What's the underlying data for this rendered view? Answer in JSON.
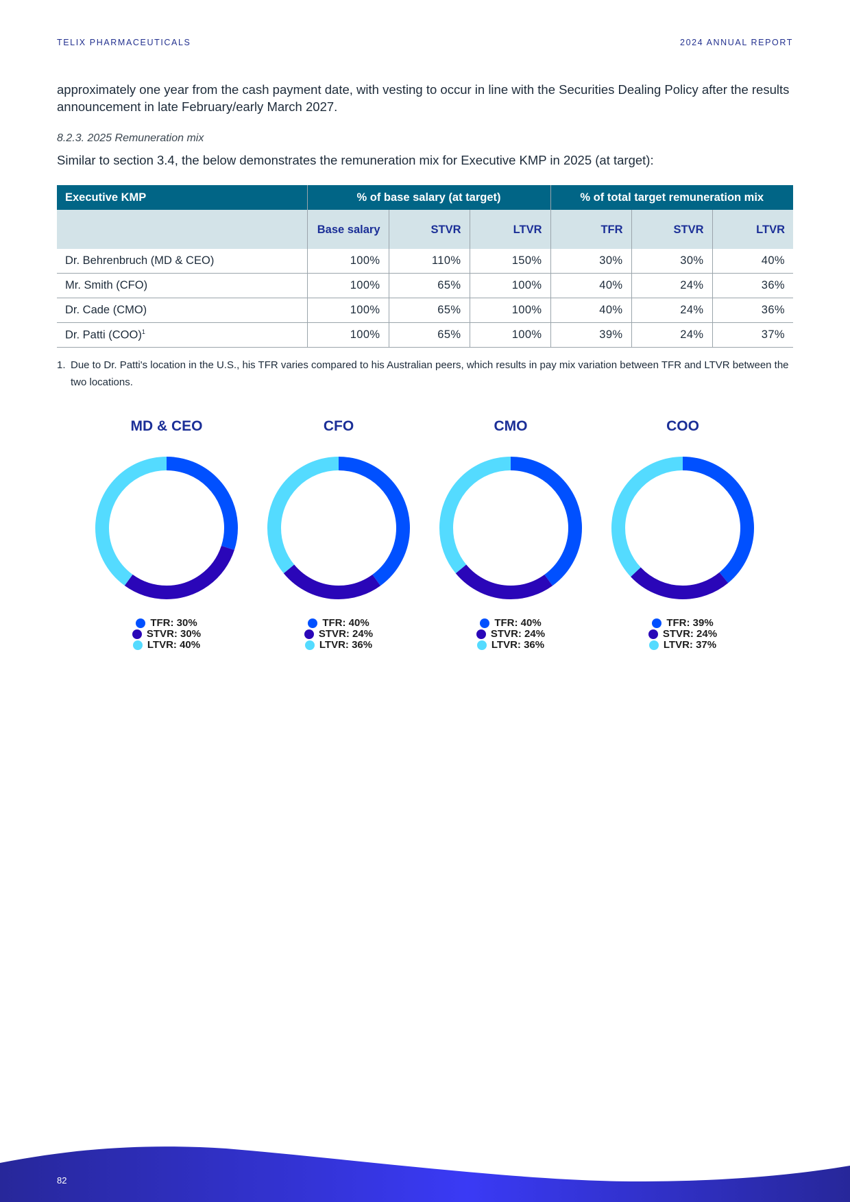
{
  "header": {
    "left": "TELIX PHARMACEUTICALS",
    "right": "2024 ANNUAL REPORT"
  },
  "intro_paragraph": "approximately one year from the cash payment date, with vesting to occur in line with the Securities Dealing Policy after the results announcement in late February/early March 2027.",
  "section_heading": "8.2.3. 2025 Remuneration mix",
  "section_intro": "Similar to section 3.4, the below demonstrates the remuneration mix for Executive KMP in 2025 (at target):",
  "table": {
    "group_headers": [
      "Executive KMP",
      "% of base salary (at target)",
      "% of total target remuneration mix"
    ],
    "sub_headers": [
      "",
      "Base salary",
      "STVR",
      "LTVR",
      "TFR",
      "STVR",
      "LTVR"
    ],
    "rows": [
      {
        "name": "Dr. Behrenbruch (MD & CEO)",
        "sup": "",
        "cells": [
          "100%",
          "110%",
          "150%",
          "30%",
          "30%",
          "40%"
        ]
      },
      {
        "name": "Mr. Smith (CFO)",
        "sup": "",
        "cells": [
          "100%",
          "65%",
          "100%",
          "40%",
          "24%",
          "36%"
        ]
      },
      {
        "name": "Dr. Cade (CMO)",
        "sup": "",
        "cells": [
          "100%",
          "65%",
          "100%",
          "40%",
          "24%",
          "36%"
        ]
      },
      {
        "name": "Dr. Patti (COO)",
        "sup": "1",
        "cells": [
          "100%",
          "65%",
          "100%",
          "39%",
          "24%",
          "37%"
        ]
      }
    ]
  },
  "footnote": {
    "num": "1.",
    "text": "Due to Dr. Patti's location in the U.S., his TFR varies compared to his Australian peers, which results in pay mix variation between TFR and LTVR between the two locations."
  },
  "colors": {
    "TFR": "#0050ff",
    "STVR": "#2a06b8",
    "LTVR": "#54dbff",
    "table_header": "#016586",
    "table_subheader": "#d3e3e8",
    "heading_blue": "#1b2f97"
  },
  "chart_data": [
    {
      "type": "pie",
      "title": "MD & CEO",
      "categories": [
        "TFR",
        "STVR",
        "LTVR"
      ],
      "values": [
        30,
        30,
        40
      ],
      "labels": [
        "TFR: 30%",
        "STVR: 30%",
        "LTVR: 40%"
      ]
    },
    {
      "type": "pie",
      "title": "CFO",
      "categories": [
        "TFR",
        "STVR",
        "LTVR"
      ],
      "values": [
        40,
        24,
        36
      ],
      "labels": [
        "TFR: 40%",
        "STVR: 24%",
        "LTVR: 36%"
      ]
    },
    {
      "type": "pie",
      "title": "CMO",
      "categories": [
        "TFR",
        "STVR",
        "LTVR"
      ],
      "values": [
        40,
        24,
        36
      ],
      "labels": [
        "TFR: 40%",
        "STVR: 24%",
        "LTVR: 36%"
      ]
    },
    {
      "type": "pie",
      "title": "COO",
      "categories": [
        "TFR",
        "STVR",
        "LTVR"
      ],
      "values": [
        39,
        24,
        37
      ],
      "labels": [
        "TFR: 39%",
        "STVR: 24%",
        "LTVR: 37%"
      ]
    }
  ],
  "page_number": "82"
}
